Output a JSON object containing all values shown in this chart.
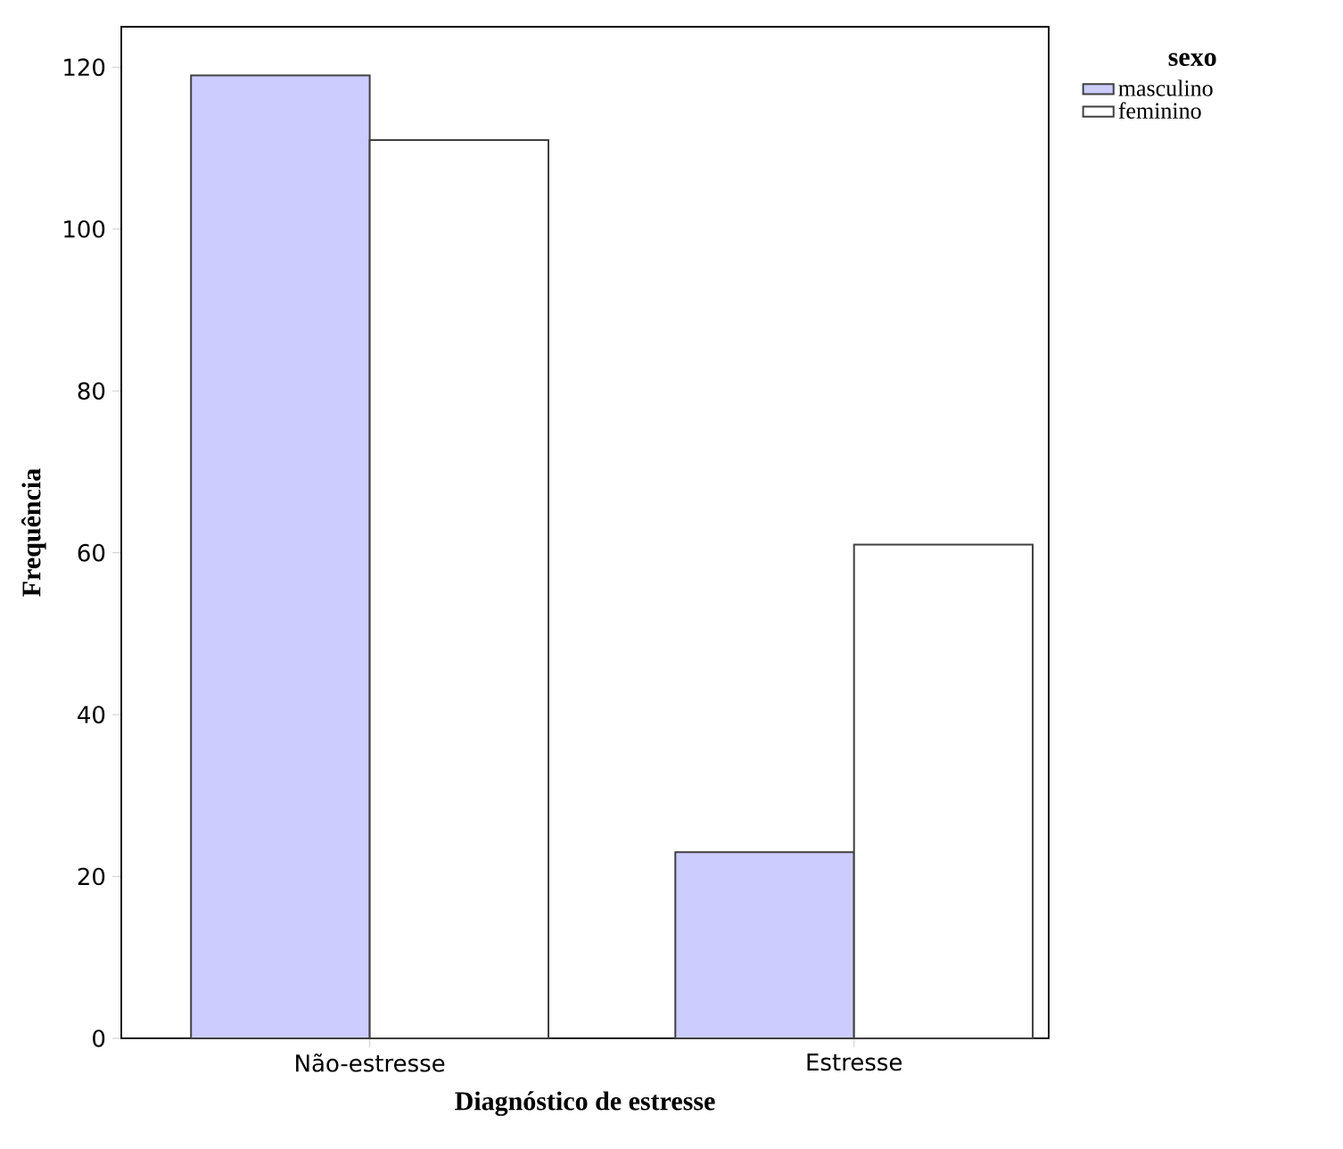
{
  "chart_data": {
    "type": "bar",
    "xlabel": "Diagnóstico de estresse",
    "ylabel": "Frequência",
    "legend_title": "sexo",
    "categories": [
      "Não-estresse",
      "Estresse"
    ],
    "series": [
      {
        "name": "masculino",
        "color": "#ccccff",
        "values": [
          119,
          23
        ]
      },
      {
        "name": "feminino",
        "color": "#ffffff",
        "values": [
          111,
          61
        ]
      }
    ],
    "ylim": [
      0,
      125
    ],
    "yticks": [
      0,
      20,
      40,
      60,
      80,
      100,
      120
    ],
    "grid": false,
    "legend": "top right"
  }
}
